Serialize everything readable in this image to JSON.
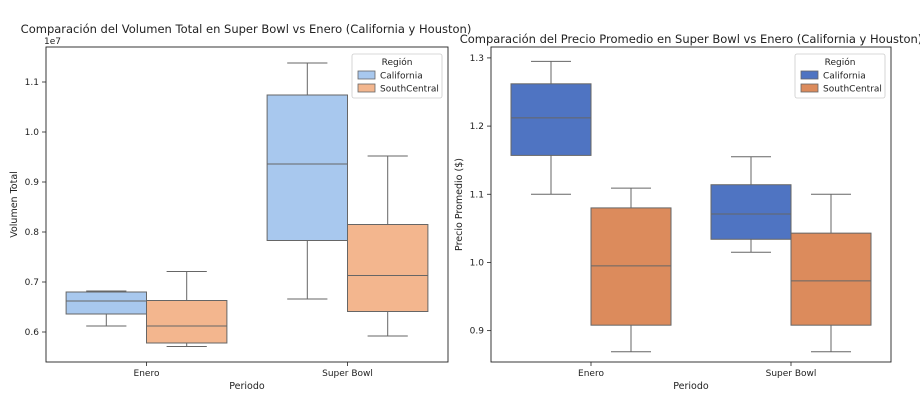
{
  "chart_data": [
    {
      "type": "boxplot",
      "title": "Comparación del Volumen Total en Super Bowl vs Enero (California y Houston)",
      "xlabel": "Periodo",
      "ylabel": "Volumen Total",
      "y_offset_label": "1e7",
      "ylim": [
        0.54,
        1.17
      ],
      "yticks": [
        "0.6",
        "0.7",
        "0.8",
        "0.9",
        "1.0",
        "1.1"
      ],
      "categories": [
        "Enero",
        "Super Bowl"
      ],
      "legend": {
        "title": "Región",
        "position": "top-right"
      },
      "series": [
        {
          "name": "California",
          "color": "#a8c8ee",
          "boxes": [
            {
              "min": 0.612,
              "q1": 0.636,
              "median": 0.662,
              "q3": 0.68,
              "max": 0.682
            },
            {
              "min": 0.666,
              "q1": 0.783,
              "median": 0.936,
              "q3": 1.074,
              "max": 1.138
            }
          ]
        },
        {
          "name": "SouthCentral",
          "color": "#f3b68e",
          "boxes": [
            {
              "min": 0.571,
              "q1": 0.578,
              "median": 0.612,
              "q3": 0.663,
              "max": 0.721
            },
            {
              "min": 0.592,
              "q1": 0.641,
              "median": 0.713,
              "q3": 0.815,
              "max": 0.952
            }
          ]
        }
      ]
    },
    {
      "type": "boxplot",
      "title": "Comparación del Precio Promedio en Super Bowl vs Enero (California y Houston)",
      "xlabel": "Periodo",
      "ylabel": "Precio Promedio ($)",
      "ylim": [
        0.854,
        1.316
      ],
      "yticks": [
        "0.9",
        "1.0",
        "1.1",
        "1.2",
        "1.3"
      ],
      "categories": [
        "Enero",
        "Super Bowl"
      ],
      "legend": {
        "title": "Región",
        "position": "top-right"
      },
      "series": [
        {
          "name": "California",
          "color": "#4f74c2",
          "boxes": [
            {
              "min": 1.1,
              "q1": 1.157,
              "median": 1.212,
              "q3": 1.262,
              "max": 1.295
            },
            {
              "min": 1.015,
              "q1": 1.034,
              "median": 1.071,
              "q3": 1.114,
              "max": 1.155
            }
          ]
        },
        {
          "name": "SouthCentral",
          "color": "#dc8b5c",
          "boxes": [
            {
              "min": 0.869,
              "q1": 0.908,
              "median": 0.995,
              "q3": 1.08,
              "max": 1.109
            },
            {
              "min": 0.869,
              "q1": 0.908,
              "median": 0.973,
              "q3": 1.043,
              "max": 1.1
            }
          ]
        }
      ]
    }
  ]
}
